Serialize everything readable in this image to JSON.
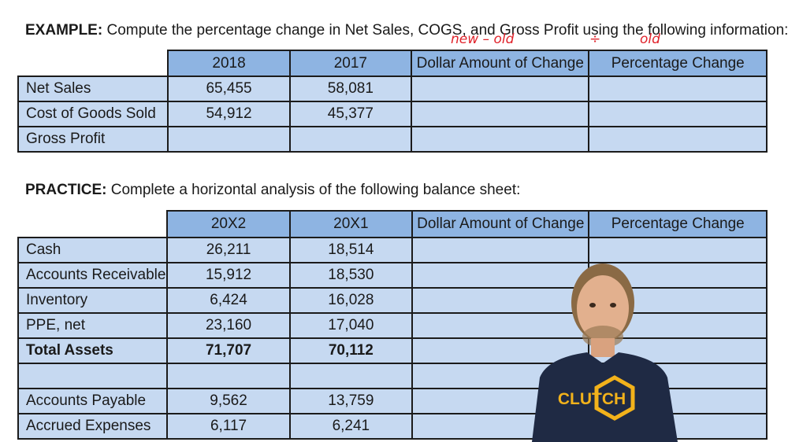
{
  "example": {
    "heading_bold": "EXAMPLE:",
    "heading_text": " Compute the percentage change in Net Sales, COGS, and Gross Profit using the following information:",
    "columns": [
      "2018",
      "2017",
      "Dollar Amount of Change",
      "Percentage Change"
    ],
    "rows": [
      {
        "label": "Net Sales",
        "v1": "65,455",
        "v2": "58,081"
      },
      {
        "label": "Cost of Goods Sold",
        "v1": "54,912",
        "v2": "45,377"
      },
      {
        "label": "Gross Profit",
        "v1": "",
        "v2": ""
      }
    ]
  },
  "annotations": {
    "new_minus_old": "new – old",
    "divide": "÷",
    "old": "old"
  },
  "practice": {
    "heading_bold": "PRACTICE:",
    "heading_text": " Complete a horizontal analysis of the following balance sheet:",
    "columns": [
      "20X2",
      "20X1",
      "Dollar Amount of Change",
      "Percentage Change"
    ],
    "rows": [
      {
        "label": "Cash",
        "v1": "26,211",
        "v2": "18,514"
      },
      {
        "label": "Accounts Receivable",
        "v1": "15,912",
        "v2": "18,530"
      },
      {
        "label": "Inventory",
        "v1": "6,424",
        "v2": "16,028"
      },
      {
        "label": "PPE, net",
        "v1": "23,160",
        "v2": "17,040"
      },
      {
        "label": "Total Assets",
        "v1": "71,707",
        "v2": "70,112"
      },
      {
        "label": "",
        "v1": "",
        "v2": ""
      },
      {
        "label": "Accounts Payable",
        "v1": "9,562",
        "v2": "13,759"
      },
      {
        "label": "Accrued Expenses",
        "v1": "6,117",
        "v2": "6,241"
      }
    ]
  },
  "presenter": {
    "shirt_logo": "CLUTCH",
    "shirt_color": "#1f2a44",
    "logo_color": "#f2b21b"
  }
}
